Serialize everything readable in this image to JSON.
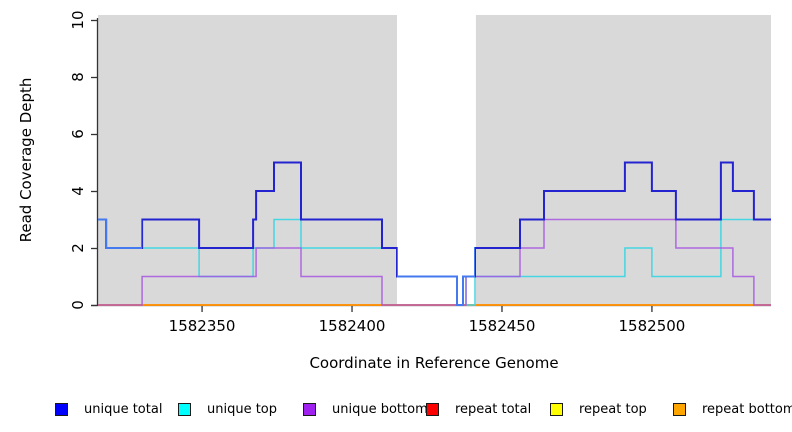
{
  "chart_data": {
    "type": "line",
    "subtype": "step",
    "title": "",
    "xlabel": "Coordinate in Reference Genome",
    "ylabel": "Read Coverage Depth",
    "x_axis": {
      "ticks": [
        1582350,
        1582400,
        1582450,
        1582500
      ],
      "range": [
        1582315.3,
        1582539.7
      ]
    },
    "y_axis": {
      "ticks": [
        0,
        2,
        4,
        6,
        8,
        10
      ],
      "range": [
        0,
        10
      ]
    },
    "plot_background": "#d9d9d9",
    "missing_region_band": {
      "x1": 1582415,
      "x2": 1582441.3,
      "color": "#ffffff"
    },
    "axis_color": "#333333",
    "series": [
      {
        "name": "repeat top",
        "color": "#f5e900",
        "width": 1.4,
        "steps": [
          [
            1582315.3,
            0
          ],
          [
            1582539.7,
            0
          ]
        ]
      },
      {
        "name": "repeat total",
        "color": "#e60000",
        "width": 1.4,
        "steps": [
          [
            1582315.3,
            0
          ],
          [
            1582539.7,
            0
          ]
        ]
      },
      {
        "name": "repeat bottom",
        "color": "#ff9a0d",
        "width": 1.7,
        "steps": [
          [
            1582315.3,
            0
          ],
          [
            1582539.7,
            0
          ]
        ]
      },
      {
        "name": "unique top",
        "color": "#45d6e2",
        "width": 1.5,
        "steps": [
          [
            1582315.3,
            3
          ],
          [
            1582318,
            2
          ],
          [
            1582349,
            1
          ],
          [
            1582367,
            2
          ],
          [
            1582374,
            3
          ],
          [
            1582383,
            2
          ],
          [
            1582415,
            1
          ],
          [
            1582435,
            0
          ],
          [
            1582437,
            1
          ],
          [
            1582438,
            0
          ],
          [
            1582441,
            1
          ],
          [
            1582491,
            2
          ],
          [
            1582500,
            1
          ],
          [
            1582523,
            3
          ],
          [
            1582539.7,
            3
          ]
        ]
      },
      {
        "name": "unique bottom",
        "color": "#a655e2",
        "width": 1.5,
        "opacity": 0.85,
        "steps": [
          [
            1582315.3,
            0
          ],
          [
            1582330,
            1
          ],
          [
            1582368,
            2
          ],
          [
            1582383,
            1
          ],
          [
            1582410,
            0
          ],
          [
            1582438,
            1
          ],
          [
            1582456,
            2
          ],
          [
            1582464,
            3
          ],
          [
            1582508,
            2
          ],
          [
            1582527,
            1
          ],
          [
            1582534,
            0
          ],
          [
            1582539.7,
            0
          ]
        ]
      },
      {
        "name": "unique total",
        "color": "#2323cf",
        "width": 2,
        "steps": [
          [
            1582315.3,
            3
          ],
          [
            1582318,
            2
          ],
          [
            1582330,
            3
          ],
          [
            1582349,
            2
          ],
          [
            1582367,
            3
          ],
          [
            1582368,
            4
          ],
          [
            1582374,
            5
          ],
          [
            1582383,
            3
          ],
          [
            1582410,
            2
          ],
          [
            1582415,
            1
          ],
          [
            1582435,
            0
          ],
          [
            1582437,
            1
          ],
          [
            1582441,
            2
          ],
          [
            1582456,
            3
          ],
          [
            1582464,
            4
          ],
          [
            1582491,
            5
          ],
          [
            1582500,
            4
          ],
          [
            1582508,
            3
          ],
          [
            1582523,
            5
          ],
          [
            1582527,
            4
          ],
          [
            1582534,
            3
          ],
          [
            1582539.7,
            3
          ]
        ]
      }
    ],
    "overlap_highlight": {
      "color": "#4479ef",
      "ranges": [
        [
          1582315.3,
          1582330
        ],
        [
          1582415,
          1582441
        ]
      ]
    },
    "legend": [
      {
        "label": "unique total",
        "fill": "#0000ff"
      },
      {
        "label": "unique top",
        "fill": "#00ffff"
      },
      {
        "label": "unique bottom",
        "fill": "#a020f0"
      },
      {
        "label": "repeat total",
        "fill": "#ff0000"
      },
      {
        "label": "repeat top",
        "fill": "#ffff00"
      },
      {
        "label": "repeat bottom",
        "fill": "#ffa500"
      }
    ]
  }
}
